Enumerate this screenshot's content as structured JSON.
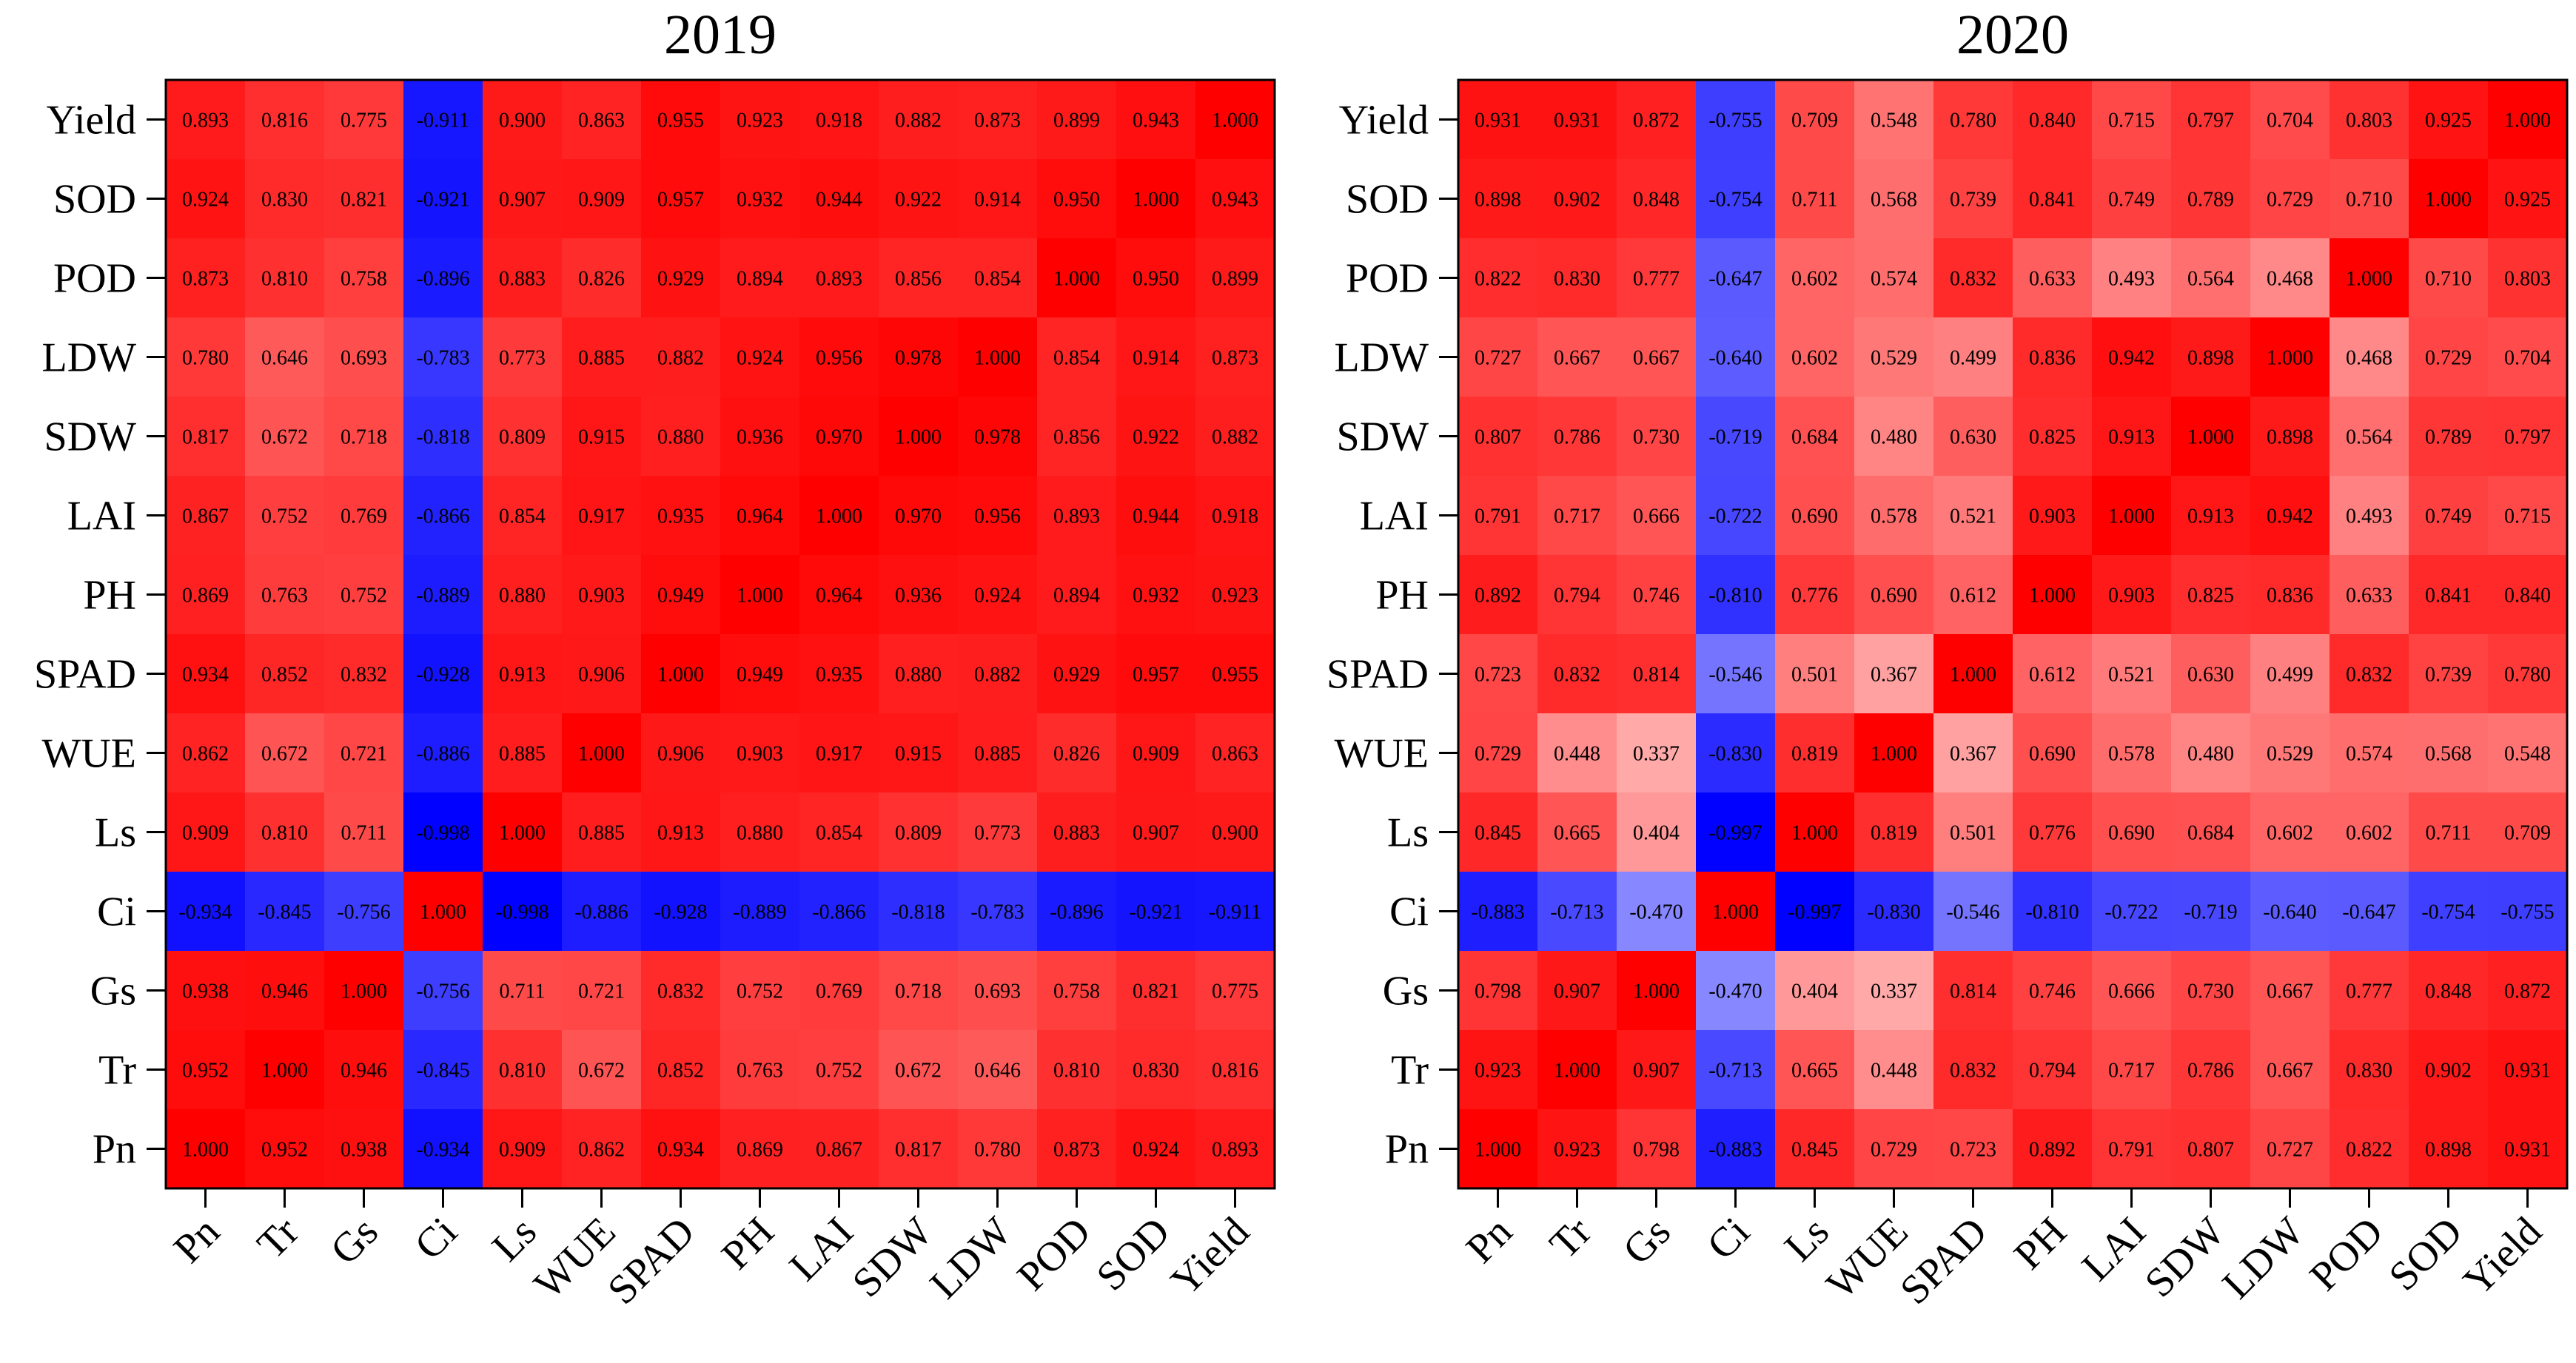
{
  "chart_data": [
    {
      "type": "heatmap",
      "title": "2019",
      "x_categories": [
        "Pn",
        "Tr",
        "Gs",
        "Ci",
        "Ls",
        "WUE",
        "SPAD",
        "PH",
        "LAI",
        "SDW",
        "LDW",
        "POD",
        "SOD",
        "Yield"
      ],
      "y_categories": [
        "Yield",
        "SOD",
        "POD",
        "LDW",
        "SDW",
        "LAI",
        "PH",
        "SPAD",
        "WUE",
        "Ls",
        "Ci",
        "Gs",
        "Tr",
        "Pn"
      ],
      "value_range": [
        -1,
        1
      ],
      "colors": {
        "negative": "#0000ff",
        "zero": "#ffffff",
        "positive": "#ff0000"
      },
      "values": [
        [
          "0.893",
          "0.816",
          "0.775",
          "-0.911",
          "0.900",
          "0.863",
          "0.955",
          "0.923",
          "0.918",
          "0.882",
          "0.873",
          "0.899",
          "0.943",
          "1.000"
        ],
        [
          "0.924",
          "0.830",
          "0.821",
          "-0.921",
          "0.907",
          "0.909",
          "0.957",
          "0.932",
          "0.944",
          "0.922",
          "0.914",
          "0.950",
          "1.000",
          "0.943"
        ],
        [
          "0.873",
          "0.810",
          "0.758",
          "-0.896",
          "0.883",
          "0.826",
          "0.929",
          "0.894",
          "0.893",
          "0.856",
          "0.854",
          "1.000",
          "0.950",
          "0.899"
        ],
        [
          "0.780",
          "0.646",
          "0.693",
          "-0.783",
          "0.773",
          "0.885",
          "0.882",
          "0.924",
          "0.956",
          "0.978",
          "1.000",
          "0.854",
          "0.914",
          "0.873"
        ],
        [
          "0.817",
          "0.672",
          "0.718",
          "-0.818",
          "0.809",
          "0.915",
          "0.880",
          "0.936",
          "0.970",
          "1.000",
          "0.978",
          "0.856",
          "0.922",
          "0.882"
        ],
        [
          "0.867",
          "0.752",
          "0.769",
          "-0.866",
          "0.854",
          "0.917",
          "0.935",
          "0.964",
          "1.000",
          "0.970",
          "0.956",
          "0.893",
          "0.944",
          "0.918"
        ],
        [
          "0.869",
          "0.763",
          "0.752",
          "-0.889",
          "0.880",
          "0.903",
          "0.949",
          "1.000",
          "0.964",
          "0.936",
          "0.924",
          "0.894",
          "0.932",
          "0.923"
        ],
        [
          "0.934",
          "0.852",
          "0.832",
          "-0.928",
          "0.913",
          "0.906",
          "1.000",
          "0.949",
          "0.935",
          "0.880",
          "0.882",
          "0.929",
          "0.957",
          "0.955"
        ],
        [
          "0.862",
          "0.672",
          "0.721",
          "-0.886",
          "0.885",
          "1.000",
          "0.906",
          "0.903",
          "0.917",
          "0.915",
          "0.885",
          "0.826",
          "0.909",
          "0.863"
        ],
        [
          "0.909",
          "0.810",
          "0.711",
          "-0.998",
          "1.000",
          "0.885",
          "0.913",
          "0.880",
          "0.854",
          "0.809",
          "0.773",
          "0.883",
          "0.907",
          "0.900"
        ],
        [
          "-0.934",
          "-0.845",
          "-0.756",
          "1.000",
          "-0.998",
          "-0.886",
          "-0.928",
          "-0.889",
          "-0.866",
          "-0.818",
          "-0.783",
          "-0.896",
          "-0.921",
          "-0.911"
        ],
        [
          "0.938",
          "0.946",
          "1.000",
          "-0.756",
          "0.711",
          "0.721",
          "0.832",
          "0.752",
          "0.769",
          "0.718",
          "0.693",
          "0.758",
          "0.821",
          "0.775"
        ],
        [
          "0.952",
          "1.000",
          "0.946",
          "-0.845",
          "0.810",
          "0.672",
          "0.852",
          "0.763",
          "0.752",
          "0.672",
          "0.646",
          "0.810",
          "0.830",
          "0.816"
        ],
        [
          "1.000",
          "0.952",
          "0.938",
          "-0.934",
          "0.909",
          "0.862",
          "0.934",
          "0.869",
          "0.867",
          "0.817",
          "0.780",
          "0.873",
          "0.924",
          "0.893"
        ]
      ]
    },
    {
      "type": "heatmap",
      "title": "2020",
      "x_categories": [
        "Pn",
        "Tr",
        "Gs",
        "Ci",
        "Ls",
        "WUE",
        "SPAD",
        "PH",
        "LAI",
        "SDW",
        "LDW",
        "POD",
        "SOD",
        "Yield"
      ],
      "y_categories": [
        "Yield",
        "SOD",
        "POD",
        "LDW",
        "SDW",
        "LAI",
        "PH",
        "SPAD",
        "WUE",
        "Ls",
        "Ci",
        "Gs",
        "Tr",
        "Pn"
      ],
      "value_range": [
        -1,
        1
      ],
      "colors": {
        "negative": "#0000ff",
        "zero": "#ffffff",
        "positive": "#ff0000"
      },
      "values": [
        [
          "0.931",
          "0.931",
          "0.872",
          "-0.755",
          "0.709",
          "0.548",
          "0.780",
          "0.840",
          "0.715",
          "0.797",
          "0.704",
          "0.803",
          "0.925",
          "1.000"
        ],
        [
          "0.898",
          "0.902",
          "0.848",
          "-0.754",
          "0.711",
          "0.568",
          "0.739",
          "0.841",
          "0.749",
          "0.789",
          "0.729",
          "0.710",
          "1.000",
          "0.925"
        ],
        [
          "0.822",
          "0.830",
          "0.777",
          "-0.647",
          "0.602",
          "0.574",
          "0.832",
          "0.633",
          "0.493",
          "0.564",
          "0.468",
          "1.000",
          "0.710",
          "0.803"
        ],
        [
          "0.727",
          "0.667",
          "0.667",
          "-0.640",
          "0.602",
          "0.529",
          "0.499",
          "0.836",
          "0.942",
          "0.898",
          "1.000",
          "0.468",
          "0.729",
          "0.704"
        ],
        [
          "0.807",
          "0.786",
          "0.730",
          "-0.719",
          "0.684",
          "0.480",
          "0.630",
          "0.825",
          "0.913",
          "1.000",
          "0.898",
          "0.564",
          "0.789",
          "0.797"
        ],
        [
          "0.791",
          "0.717",
          "0.666",
          "-0.722",
          "0.690",
          "0.578",
          "0.521",
          "0.903",
          "1.000",
          "0.913",
          "0.942",
          "0.493",
          "0.749",
          "0.715"
        ],
        [
          "0.892",
          "0.794",
          "0.746",
          "-0.810",
          "0.776",
          "0.690",
          "0.612",
          "1.000",
          "0.903",
          "0.825",
          "0.836",
          "0.633",
          "0.841",
          "0.840"
        ],
        [
          "0.723",
          "0.832",
          "0.814",
          "-0.546",
          "0.501",
          "0.367",
          "1.000",
          "0.612",
          "0.521",
          "0.630",
          "0.499",
          "0.832",
          "0.739",
          "0.780"
        ],
        [
          "0.729",
          "0.448",
          "0.337",
          "-0.830",
          "0.819",
          "1.000",
          "0.367",
          "0.690",
          "0.578",
          "0.480",
          "0.529",
          "0.574",
          "0.568",
          "0.548"
        ],
        [
          "0.845",
          "0.665",
          "0.404",
          "-0.997",
          "1.000",
          "0.819",
          "0.501",
          "0.776",
          "0.690",
          "0.684",
          "0.602",
          "0.602",
          "0.711",
          "0.709"
        ],
        [
          "-0.883",
          "-0.713",
          "-0.470",
          "1.000",
          "-0.997",
          "-0.830",
          "-0.546",
          "-0.810",
          "-0.722",
          "-0.719",
          "-0.640",
          "-0.647",
          "-0.754",
          "-0.755"
        ],
        [
          "0.798",
          "0.907",
          "1.000",
          "-0.470",
          "0.404",
          "0.337",
          "0.814",
          "0.746",
          "0.666",
          "0.730",
          "0.667",
          "0.777",
          "0.848",
          "0.872"
        ],
        [
          "0.923",
          "1.000",
          "0.907",
          "-0.713",
          "0.665",
          "0.448",
          "0.832",
          "0.794",
          "0.717",
          "0.786",
          "0.667",
          "0.830",
          "0.902",
          "0.931"
        ],
        [
          "1.000",
          "0.923",
          "0.798",
          "-0.883",
          "0.845",
          "0.729",
          "0.723",
          "0.892",
          "0.791",
          "0.807",
          "0.727",
          "0.822",
          "0.898",
          "0.931"
        ]
      ]
    }
  ]
}
